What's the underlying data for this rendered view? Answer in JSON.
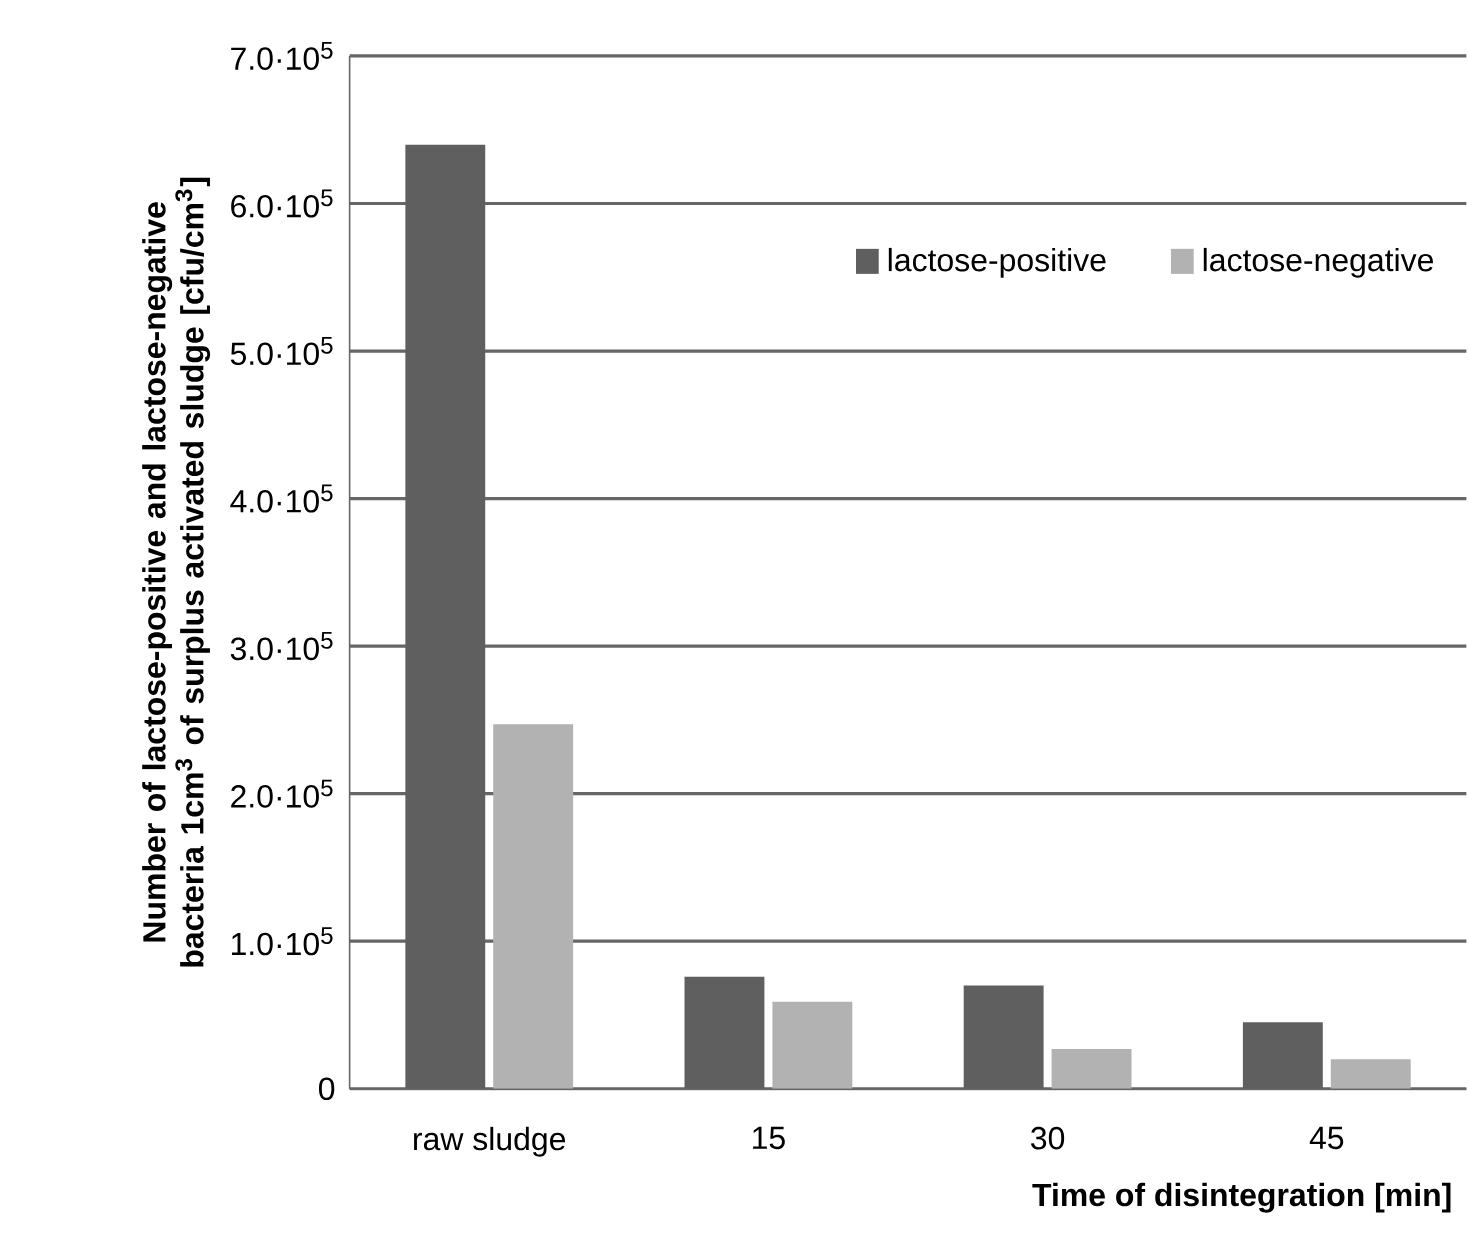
{
  "chart_data": {
    "type": "bar",
    "xlabel": "Time of disintegration [min]",
    "ylabel": "Number of lactose-positive and lactose-negative bacteria 1cm$^{3}$ of surplus activated sludge [cfu/cm$^{3}$]",
    "categories": [
      "raw sludge",
      "15",
      "30",
      "45"
    ],
    "series": [
      {
        "name": "lactose-positive",
        "color": "#5f5f5f",
        "values": [
          640000,
          76000,
          70000,
          45000
        ]
      },
      {
        "name": "lactose-negative",
        "color": "#b2b2b2",
        "values": [
          247000,
          59000,
          27000,
          20000
        ]
      }
    ],
    "ylim": [
      0,
      700000
    ],
    "yticks": [
      0,
      {
        "value": 100000,
        "label": "1.0·10$^{5}$"
      },
      {
        "value": 200000,
        "label": "2.0·10$^{5}$"
      },
      {
        "value": 300000,
        "label": "3.0·10$^{5}$"
      },
      {
        "value": 400000,
        "label": "4.0·10$^{5}$"
      },
      {
        "value": 500000,
        "label": "5.0·10$^{5}$"
      },
      {
        "value": 600000,
        "label": "6.0·10$^{5}$"
      },
      {
        "value": 700000,
        "label": "7.0·10$^{5}$"
      }
    ],
    "grid": "y",
    "legend": "top right"
  }
}
